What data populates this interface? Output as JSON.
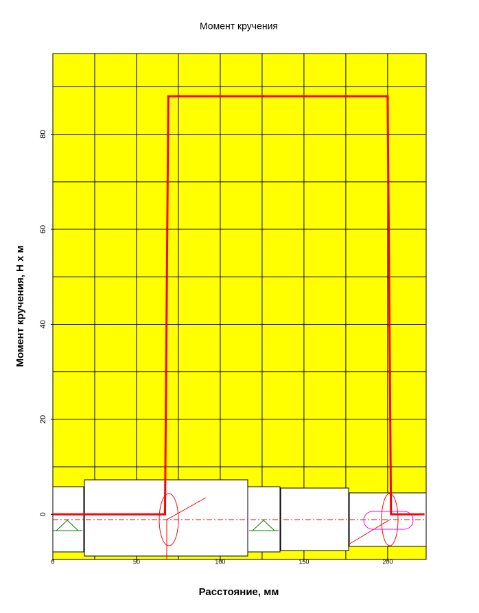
{
  "chart_data": {
    "type": "line",
    "title": "Момент кручения",
    "xlabel": "Расстояние, мм",
    "ylabel": "Момент кручения, Н х м",
    "x": [
      0,
      67,
      69,
      200,
      202,
      222
    ],
    "series": [
      {
        "name": "Момент кручения",
        "color": "#ff0000",
        "values": [
          0,
          0,
          88,
          88,
          0,
          0
        ]
      }
    ],
    "xlim": [
      0,
      223
    ],
    "ylim": [
      -9.5,
      97
    ],
    "xticks": [
      0,
      50,
      100,
      150,
      200
    ],
    "yticks": [
      0,
      20,
      40,
      60,
      80
    ],
    "xgrid": [
      0,
      25,
      50,
      75,
      100,
      125,
      150,
      175,
      200
    ],
    "ygrid": [
      0,
      10,
      20,
      30,
      40,
      50,
      60,
      70,
      80,
      90
    ],
    "grid": true,
    "background": "#ffff00"
  }
}
